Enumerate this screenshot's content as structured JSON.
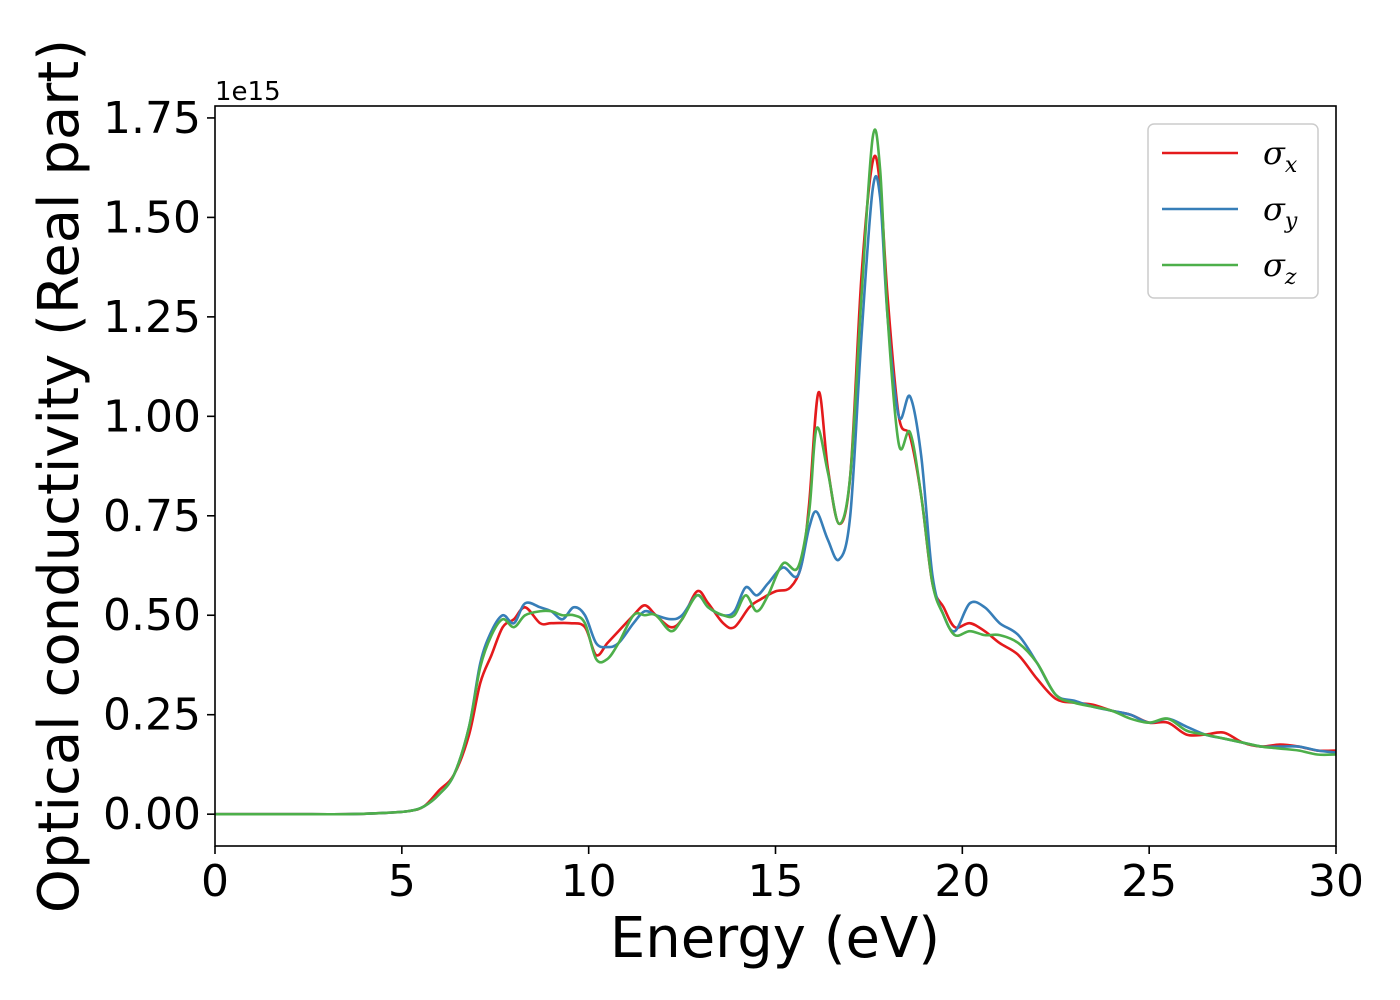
{
  "chart_data": {
    "type": "line",
    "xlabel": "Energy (eV)",
    "ylabel": "Optical conductivity (Real part)",
    "y_offset_label": "1e15",
    "xlim": [
      0,
      30
    ],
    "ylim": [
      -0.08,
      1.78
    ],
    "x_ticks": [
      "0",
      "5",
      "10",
      "15",
      "20",
      "25",
      "30"
    ],
    "y_ticks": [
      "0.00",
      "0.25",
      "0.50",
      "0.75",
      "1.00",
      "1.25",
      "1.50",
      "1.75"
    ],
    "grid": false,
    "legend_position": "top-right",
    "series": [
      {
        "name": "σ",
        "subscript": "x",
        "color": "#e41a1c",
        "points": [
          [
            0,
            0
          ],
          [
            2,
            0
          ],
          [
            3.5,
            0
          ],
          [
            4.5,
            0.003
          ],
          [
            5.2,
            0.008
          ],
          [
            5.6,
            0.02
          ],
          [
            6,
            0.06
          ],
          [
            6.4,
            0.1
          ],
          [
            6.8,
            0.2
          ],
          [
            7.1,
            0.33
          ],
          [
            7.4,
            0.4
          ],
          [
            7.7,
            0.47
          ],
          [
            8.0,
            0.49
          ],
          [
            8.3,
            0.52
          ],
          [
            8.7,
            0.48
          ],
          [
            9.0,
            0.48
          ],
          [
            9.5,
            0.48
          ],
          [
            9.9,
            0.47
          ],
          [
            10.2,
            0.4
          ],
          [
            10.5,
            0.43
          ],
          [
            10.8,
            0.46
          ],
          [
            11.2,
            0.5
          ],
          [
            11.5,
            0.525
          ],
          [
            11.8,
            0.5
          ],
          [
            12.2,
            0.47
          ],
          [
            12.5,
            0.49
          ],
          [
            12.9,
            0.56
          ],
          [
            13.2,
            0.53
          ],
          [
            13.6,
            0.48
          ],
          [
            13.9,
            0.47
          ],
          [
            14.3,
            0.52
          ],
          [
            14.6,
            0.54
          ],
          [
            15.0,
            0.56
          ],
          [
            15.4,
            0.57
          ],
          [
            15.7,
            0.63
          ],
          [
            15.9,
            0.78
          ],
          [
            16.15,
            1.06
          ],
          [
            16.4,
            0.87
          ],
          [
            16.7,
            0.73
          ],
          [
            17.0,
            0.85
          ],
          [
            17.3,
            1.35
          ],
          [
            17.6,
            1.64
          ],
          [
            17.8,
            1.58
          ],
          [
            18.0,
            1.3
          ],
          [
            18.3,
            1.0
          ],
          [
            18.6,
            0.95
          ],
          [
            18.9,
            0.8
          ],
          [
            19.2,
            0.58
          ],
          [
            19.5,
            0.52
          ],
          [
            19.8,
            0.47
          ],
          [
            20.2,
            0.48
          ],
          [
            20.6,
            0.46
          ],
          [
            21.0,
            0.43
          ],
          [
            21.5,
            0.4
          ],
          [
            22.0,
            0.34
          ],
          [
            22.5,
            0.29
          ],
          [
            23.0,
            0.28
          ],
          [
            23.5,
            0.275
          ],
          [
            24.0,
            0.26
          ],
          [
            24.5,
            0.25
          ],
          [
            25.0,
            0.23
          ],
          [
            25.5,
            0.23
          ],
          [
            26.0,
            0.2
          ],
          [
            26.5,
            0.2
          ],
          [
            27.0,
            0.205
          ],
          [
            27.5,
            0.18
          ],
          [
            28.0,
            0.17
          ],
          [
            28.5,
            0.175
          ],
          [
            29.0,
            0.17
          ],
          [
            29.5,
            0.16
          ],
          [
            30.0,
            0.16
          ]
        ]
      },
      {
        "name": "σ",
        "subscript": "y",
        "color": "#377eb8",
        "points": [
          [
            0,
            0
          ],
          [
            2,
            0
          ],
          [
            3.5,
            0
          ],
          [
            4.5,
            0.003
          ],
          [
            5.2,
            0.008
          ],
          [
            5.6,
            0.02
          ],
          [
            6,
            0.05
          ],
          [
            6.4,
            0.1
          ],
          [
            6.8,
            0.22
          ],
          [
            7.1,
            0.38
          ],
          [
            7.4,
            0.46
          ],
          [
            7.7,
            0.5
          ],
          [
            8.0,
            0.48
          ],
          [
            8.3,
            0.53
          ],
          [
            8.7,
            0.52
          ],
          [
            9.0,
            0.51
          ],
          [
            9.3,
            0.49
          ],
          [
            9.6,
            0.52
          ],
          [
            9.9,
            0.5
          ],
          [
            10.2,
            0.43
          ],
          [
            10.5,
            0.42
          ],
          [
            10.8,
            0.43
          ],
          [
            11.2,
            0.48
          ],
          [
            11.5,
            0.51
          ],
          [
            11.8,
            0.5
          ],
          [
            12.2,
            0.49
          ],
          [
            12.5,
            0.5
          ],
          [
            12.9,
            0.55
          ],
          [
            13.2,
            0.52
          ],
          [
            13.6,
            0.5
          ],
          [
            13.9,
            0.51
          ],
          [
            14.2,
            0.57
          ],
          [
            14.5,
            0.55
          ],
          [
            14.8,
            0.58
          ],
          [
            15.2,
            0.62
          ],
          [
            15.6,
            0.6
          ],
          [
            15.9,
            0.72
          ],
          [
            16.1,
            0.76
          ],
          [
            16.4,
            0.69
          ],
          [
            16.7,
            0.64
          ],
          [
            17.0,
            0.75
          ],
          [
            17.3,
            1.2
          ],
          [
            17.6,
            1.57
          ],
          [
            17.8,
            1.55
          ],
          [
            18.0,
            1.25
          ],
          [
            18.3,
            1.0
          ],
          [
            18.6,
            1.05
          ],
          [
            18.9,
            0.9
          ],
          [
            19.2,
            0.6
          ],
          [
            19.5,
            0.5
          ],
          [
            19.8,
            0.46
          ],
          [
            20.2,
            0.53
          ],
          [
            20.6,
            0.52
          ],
          [
            21.0,
            0.48
          ],
          [
            21.5,
            0.45
          ],
          [
            22.0,
            0.38
          ],
          [
            22.5,
            0.3
          ],
          [
            23.0,
            0.285
          ],
          [
            23.5,
            0.27
          ],
          [
            24.0,
            0.26
          ],
          [
            24.5,
            0.25
          ],
          [
            25.0,
            0.23
          ],
          [
            25.5,
            0.24
          ],
          [
            26.0,
            0.22
          ],
          [
            26.5,
            0.2
          ],
          [
            27.0,
            0.19
          ],
          [
            27.5,
            0.18
          ],
          [
            28.0,
            0.17
          ],
          [
            28.5,
            0.17
          ],
          [
            29.0,
            0.17
          ],
          [
            29.5,
            0.16
          ],
          [
            30.0,
            0.155
          ]
        ]
      },
      {
        "name": "σ",
        "subscript": "z",
        "color": "#4daf4a",
        "points": [
          [
            0,
            0
          ],
          [
            2,
            0
          ],
          [
            3.5,
            0
          ],
          [
            4.5,
            0.003
          ],
          [
            5.2,
            0.008
          ],
          [
            5.6,
            0.02
          ],
          [
            6,
            0.05
          ],
          [
            6.4,
            0.1
          ],
          [
            6.8,
            0.22
          ],
          [
            7.1,
            0.37
          ],
          [
            7.4,
            0.45
          ],
          [
            7.7,
            0.49
          ],
          [
            8.0,
            0.47
          ],
          [
            8.3,
            0.5
          ],
          [
            8.7,
            0.51
          ],
          [
            9.0,
            0.51
          ],
          [
            9.3,
            0.5
          ],
          [
            9.6,
            0.5
          ],
          [
            9.9,
            0.48
          ],
          [
            10.2,
            0.39
          ],
          [
            10.5,
            0.39
          ],
          [
            10.8,
            0.43
          ],
          [
            11.2,
            0.5
          ],
          [
            11.5,
            0.5
          ],
          [
            11.8,
            0.5
          ],
          [
            12.2,
            0.46
          ],
          [
            12.5,
            0.49
          ],
          [
            12.9,
            0.55
          ],
          [
            13.2,
            0.52
          ],
          [
            13.6,
            0.5
          ],
          [
            13.9,
            0.5
          ],
          [
            14.2,
            0.55
          ],
          [
            14.5,
            0.51
          ],
          [
            14.8,
            0.55
          ],
          [
            15.2,
            0.63
          ],
          [
            15.6,
            0.62
          ],
          [
            15.9,
            0.76
          ],
          [
            16.1,
            0.97
          ],
          [
            16.4,
            0.86
          ],
          [
            16.7,
            0.73
          ],
          [
            17.0,
            0.85
          ],
          [
            17.3,
            1.3
          ],
          [
            17.6,
            1.7
          ],
          [
            17.8,
            1.62
          ],
          [
            18.0,
            1.25
          ],
          [
            18.3,
            0.93
          ],
          [
            18.6,
            0.96
          ],
          [
            18.9,
            0.8
          ],
          [
            19.2,
            0.58
          ],
          [
            19.5,
            0.5
          ],
          [
            19.8,
            0.45
          ],
          [
            20.2,
            0.46
          ],
          [
            20.6,
            0.45
          ],
          [
            21.0,
            0.45
          ],
          [
            21.5,
            0.43
          ],
          [
            22.0,
            0.38
          ],
          [
            22.5,
            0.3
          ],
          [
            23.0,
            0.28
          ],
          [
            23.5,
            0.27
          ],
          [
            24.0,
            0.26
          ],
          [
            24.5,
            0.24
          ],
          [
            25.0,
            0.23
          ],
          [
            25.5,
            0.24
          ],
          [
            26.0,
            0.21
          ],
          [
            26.5,
            0.2
          ],
          [
            27.0,
            0.19
          ],
          [
            27.5,
            0.18
          ],
          [
            28.0,
            0.17
          ],
          [
            28.5,
            0.165
          ],
          [
            29.0,
            0.16
          ],
          [
            29.5,
            0.15
          ],
          [
            30.0,
            0.15
          ]
        ]
      }
    ]
  }
}
